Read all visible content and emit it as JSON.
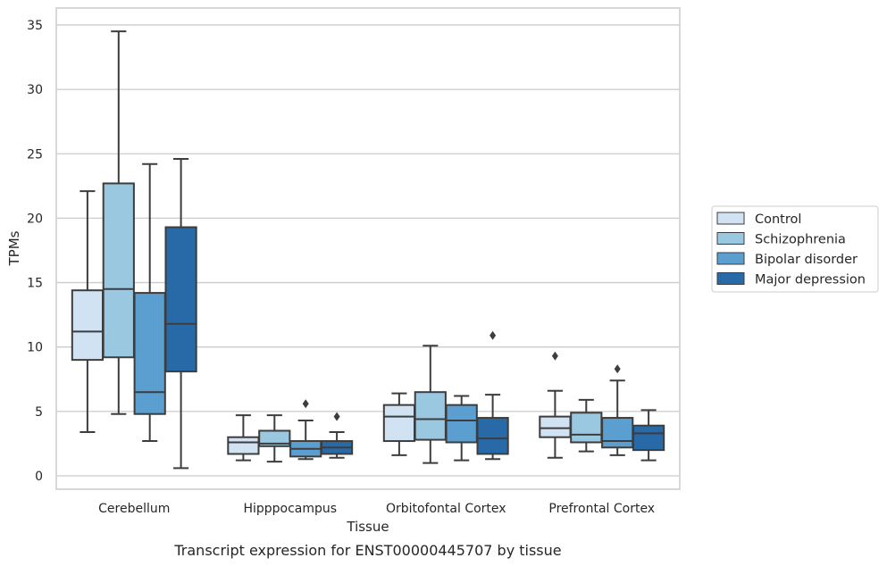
{
  "chart_data": {
    "type": "box",
    "caption": "Transcript expression for ENST00000445707 by tissue",
    "xlabel": "Tissue",
    "ylabel": "TPMs",
    "ylim": [
      -1,
      36
    ],
    "yticks": [
      0,
      5,
      10,
      15,
      20,
      25,
      30,
      35
    ],
    "grid": true,
    "legend_position": "right",
    "categories": [
      "Cerebellum",
      "Hipppocampus",
      "Orbitofontal Cortex",
      "Prefrontal Cortex"
    ],
    "series": [
      {
        "name": "Control",
        "color": "#d1e2f3",
        "boxes": [
          {
            "whislo": 3.4,
            "q1": 9.0,
            "med": 11.2,
            "q3": 14.4,
            "whishi": 22.1,
            "fliers": []
          },
          {
            "whislo": 1.2,
            "q1": 1.7,
            "med": 2.6,
            "q3": 3.0,
            "whishi": 4.7,
            "fliers": []
          },
          {
            "whislo": 1.6,
            "q1": 2.7,
            "med": 4.6,
            "q3": 5.5,
            "whishi": 6.4,
            "fliers": []
          },
          {
            "whislo": 1.4,
            "q1": 3.0,
            "med": 3.7,
            "q3": 4.6,
            "whishi": 6.6,
            "fliers": [
              9.3
            ]
          }
        ]
      },
      {
        "name": "Schizophrenia",
        "color": "#9ac8e0",
        "boxes": [
          {
            "whislo": 4.8,
            "q1": 9.2,
            "med": 14.5,
            "q3": 22.7,
            "whishi": 34.5,
            "fliers": []
          },
          {
            "whislo": 1.1,
            "q1": 2.3,
            "med": 2.5,
            "q3": 3.5,
            "whishi": 4.7,
            "fliers": []
          },
          {
            "whislo": 1.0,
            "q1": 2.8,
            "med": 4.4,
            "q3": 6.5,
            "whishi": 10.1,
            "fliers": []
          },
          {
            "whislo": 1.9,
            "q1": 2.6,
            "med": 3.2,
            "q3": 4.9,
            "whishi": 5.9,
            "fliers": []
          }
        ]
      },
      {
        "name": "Bipolar disorder",
        "color": "#5a9fcf",
        "boxes": [
          {
            "whislo": 2.7,
            "q1": 4.8,
            "med": 6.5,
            "q3": 14.2,
            "whishi": 24.2,
            "fliers": []
          },
          {
            "whislo": 1.3,
            "q1": 1.5,
            "med": 2.1,
            "q3": 2.7,
            "whishi": 4.3,
            "fliers": [
              5.6
            ]
          },
          {
            "whislo": 1.2,
            "q1": 2.6,
            "med": 4.3,
            "q3": 5.5,
            "whishi": 6.2,
            "fliers": []
          },
          {
            "whislo": 1.6,
            "q1": 2.2,
            "med": 2.7,
            "q3": 4.5,
            "whishi": 7.4,
            "fliers": [
              8.3
            ]
          }
        ]
      },
      {
        "name": "Major depression",
        "color": "#2869a7",
        "boxes": [
          {
            "whislo": 0.6,
            "q1": 8.1,
            "med": 11.8,
            "q3": 19.3,
            "whishi": 24.6,
            "fliers": []
          },
          {
            "whislo": 1.4,
            "q1": 1.7,
            "med": 2.2,
            "q3": 2.7,
            "whishi": 3.4,
            "fliers": [
              4.6
            ]
          },
          {
            "whislo": 1.3,
            "q1": 1.7,
            "med": 2.9,
            "q3": 4.5,
            "whishi": 6.3,
            "fliers": [
              10.9
            ]
          },
          {
            "whislo": 1.2,
            "q1": 2.0,
            "med": 3.3,
            "q3": 3.9,
            "whishi": 5.1,
            "fliers": []
          }
        ]
      }
    ]
  }
}
